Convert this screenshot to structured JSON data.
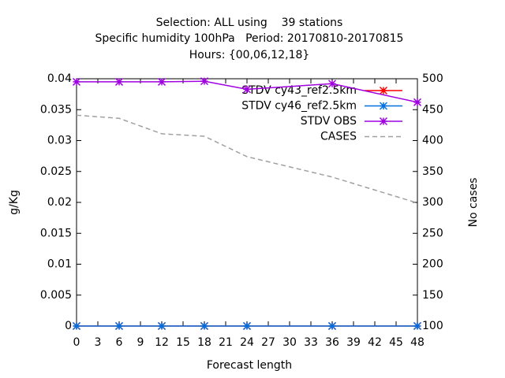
{
  "chart_data": {
    "type": "line",
    "title": [
      "Selection: ALL using    39 stations",
      "Specific humidity 100hPa   Period: 20170810-20170815",
      "Hours: {00,06,12,18}"
    ],
    "x_label": "Forecast length",
    "y_label": "g/Kg",
    "y2_label": "No cases",
    "x": [
      0,
      6,
      12,
      18,
      24,
      36,
      48
    ],
    "series": [
      {
        "name": "STDV cy43_ref2.5km",
        "color": "#ff0000",
        "values": [
          0,
          0,
          0,
          0,
          0,
          0,
          0
        ]
      },
      {
        "name": "STDV cy46_ref2.5km",
        "color": "#0070e0",
        "values": [
          0,
          0,
          0,
          0,
          0,
          0,
          0
        ]
      },
      {
        "name": "STDV OBS",
        "color": "#a000e0",
        "values": [
          0.0395,
          0.0395,
          0.0395,
          0.0396,
          0.0383,
          0.0392,
          0.0362
        ]
      },
      {
        "name": "CASES",
        "color": "#a0a0a0",
        "axis": "y2",
        "dashed": true,
        "values": [
          441,
          436,
          411,
          407,
          374,
          341,
          299
        ]
      }
    ],
    "xlim": [
      0,
      48
    ],
    "xticks": [
      0,
      3,
      6,
      9,
      12,
      15,
      18,
      21,
      24,
      27,
      30,
      33,
      36,
      39,
      42,
      45,
      48
    ],
    "ylim": [
      0,
      0.04
    ],
    "yticks": [
      0,
      0.005,
      0.01,
      0.015,
      0.02,
      0.025,
      0.03,
      0.035,
      0.04
    ],
    "y2lim": [
      100,
      500
    ],
    "y2ticks": [
      100,
      150,
      200,
      250,
      300,
      350,
      400,
      450,
      500
    ],
    "legend": "top-right"
  }
}
